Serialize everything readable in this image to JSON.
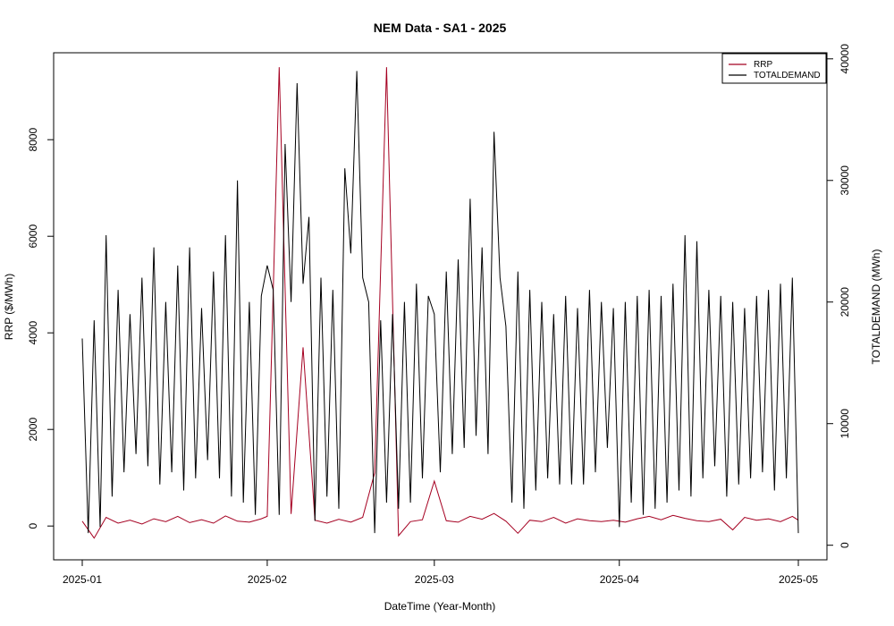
{
  "chart_data": {
    "type": "line",
    "title": "NEM Data - SA1 - 2025",
    "xlabel": "DateTime (Year-Month)",
    "ylabel_left": "RRP ($/MWh)",
    "ylabel_right": "TOTALDEMAND (MWh)",
    "x_tick_labels": [
      "2025-01",
      "2025-02",
      "2025-03",
      "2025-04",
      "2025-05"
    ],
    "x_range": [
      "2025-01-01",
      "2025-05-01"
    ],
    "ylim_left": [
      -700,
      9800
    ],
    "yticks_left": [
      0,
      2000,
      4000,
      6000,
      8000
    ],
    "ylim_right": [
      -1200,
      40500
    ],
    "yticks_right": [
      0,
      10000,
      20000,
      30000,
      40000
    ],
    "legend_position": "top-right",
    "grid": false,
    "series": [
      {
        "name": "RRP",
        "axis": "left",
        "color": "#a50021",
        "x": [
          "2025-01-01",
          "2025-01-03",
          "2025-01-05",
          "2025-01-07",
          "2025-01-09",
          "2025-01-11",
          "2025-01-13",
          "2025-01-15",
          "2025-01-17",
          "2025-01-19",
          "2025-01-21",
          "2025-01-23",
          "2025-01-25",
          "2025-01-27",
          "2025-01-29",
          "2025-01-31",
          "2025-02-01",
          "2025-02-03",
          "2025-02-05",
          "2025-02-07",
          "2025-02-09",
          "2025-02-11",
          "2025-02-13",
          "2025-02-15",
          "2025-02-17",
          "2025-02-19",
          "2025-02-21",
          "2025-02-23",
          "2025-02-25",
          "2025-02-27",
          "2025-03-01",
          "2025-03-03",
          "2025-03-05",
          "2025-03-07",
          "2025-03-09",
          "2025-03-11",
          "2025-03-13",
          "2025-03-15",
          "2025-03-17",
          "2025-03-19",
          "2025-03-21",
          "2025-03-23",
          "2025-03-25",
          "2025-03-27",
          "2025-03-29",
          "2025-03-31",
          "2025-04-02",
          "2025-04-04",
          "2025-04-06",
          "2025-04-08",
          "2025-04-10",
          "2025-04-12",
          "2025-04-14",
          "2025-04-16",
          "2025-04-18",
          "2025-04-20",
          "2025-04-22",
          "2025-04-24",
          "2025-04-26",
          "2025-04-28",
          "2025-04-30",
          "2025-05-01"
        ],
        "y": [
          100,
          -250,
          180,
          60,
          120,
          40,
          150,
          90,
          200,
          70,
          130,
          60,
          210,
          100,
          80,
          150,
          200,
          9500,
          250,
          3700,
          120,
          60,
          140,
          80,
          180,
          1100,
          9500,
          -200,
          90,
          130,
          930,
          110,
          80,
          200,
          140,
          260,
          100,
          -150,
          120,
          90,
          180,
          60,
          150,
          110,
          90,
          120,
          80,
          150,
          200,
          130,
          220,
          160,
          110,
          90,
          140,
          -80,
          180,
          120,
          150,
          90,
          200,
          120
        ]
      },
      {
        "name": "TOTALDEMAND",
        "axis": "right",
        "color": "#000000",
        "x": [
          "2025-01-01",
          "2025-01-02",
          "2025-01-03",
          "2025-01-04",
          "2025-01-05",
          "2025-01-06",
          "2025-01-07",
          "2025-01-08",
          "2025-01-09",
          "2025-01-10",
          "2025-01-11",
          "2025-01-12",
          "2025-01-13",
          "2025-01-14",
          "2025-01-15",
          "2025-01-16",
          "2025-01-17",
          "2025-01-18",
          "2025-01-19",
          "2025-01-20",
          "2025-01-21",
          "2025-01-22",
          "2025-01-23",
          "2025-01-24",
          "2025-01-25",
          "2025-01-26",
          "2025-01-27",
          "2025-01-28",
          "2025-01-29",
          "2025-01-30",
          "2025-01-31",
          "2025-02-01",
          "2025-02-02",
          "2025-02-03",
          "2025-02-04",
          "2025-02-05",
          "2025-02-06",
          "2025-02-07",
          "2025-02-08",
          "2025-02-09",
          "2025-02-10",
          "2025-02-11",
          "2025-02-12",
          "2025-02-13",
          "2025-02-14",
          "2025-02-15",
          "2025-02-16",
          "2025-02-17",
          "2025-02-18",
          "2025-02-19",
          "2025-02-20",
          "2025-02-21",
          "2025-02-22",
          "2025-02-23",
          "2025-02-24",
          "2025-02-25",
          "2025-02-26",
          "2025-02-27",
          "2025-02-28",
          "2025-03-01",
          "2025-03-02",
          "2025-03-03",
          "2025-03-04",
          "2025-03-05",
          "2025-03-06",
          "2025-03-07",
          "2025-03-08",
          "2025-03-09",
          "2025-03-10",
          "2025-03-11",
          "2025-03-12",
          "2025-03-13",
          "2025-03-14",
          "2025-03-15",
          "2025-03-16",
          "2025-03-17",
          "2025-03-18",
          "2025-03-19",
          "2025-03-20",
          "2025-03-21",
          "2025-03-22",
          "2025-03-23",
          "2025-03-24",
          "2025-03-25",
          "2025-03-26",
          "2025-03-27",
          "2025-03-28",
          "2025-03-29",
          "2025-03-30",
          "2025-03-31",
          "2025-04-01",
          "2025-04-02",
          "2025-04-03",
          "2025-04-04",
          "2025-04-05",
          "2025-04-06",
          "2025-04-07",
          "2025-04-08",
          "2025-04-09",
          "2025-04-10",
          "2025-04-11",
          "2025-04-12",
          "2025-04-13",
          "2025-04-14",
          "2025-04-15",
          "2025-04-16",
          "2025-04-17",
          "2025-04-18",
          "2025-04-19",
          "2025-04-20",
          "2025-04-21",
          "2025-04-22",
          "2025-04-23",
          "2025-04-24",
          "2025-04-25",
          "2025-04-26",
          "2025-04-27",
          "2025-04-28",
          "2025-04-29",
          "2025-04-30",
          "2025-05-01"
        ],
        "y": [
          17000,
          1000,
          18500,
          1500,
          25500,
          4000,
          21000,
          6000,
          19000,
          7500,
          22000,
          6500,
          24500,
          5000,
          20000,
          6000,
          23000,
          4500,
          24500,
          5500,
          19500,
          7000,
          22500,
          5500,
          25500,
          4000,
          30000,
          3500,
          20000,
          2500,
          20500,
          23000,
          21000,
          2500,
          33000,
          20000,
          38000,
          21500,
          27000,
          2000,
          22000,
          4000,
          21000,
          3000,
          31000,
          24000,
          39000,
          22000,
          20000,
          1000,
          18500,
          3500,
          19000,
          3000,
          20000,
          3500,
          21500,
          5500,
          20500,
          19000,
          6000,
          22500,
          7500,
          23500,
          8000,
          28500,
          9000,
          24500,
          7500,
          34000,
          22000,
          18000,
          3500,
          22500,
          3000,
          21000,
          4500,
          20000,
          5500,
          19000,
          5000,
          20500,
          5000,
          19500,
          5000,
          21000,
          6000,
          20000,
          8000,
          19500,
          1500,
          20000,
          3500,
          20500,
          2500,
          21000,
          3000,
          20500,
          3500,
          21500,
          4500,
          25500,
          4000,
          25000,
          5500,
          21000,
          6500,
          20500,
          4000,
          20000,
          5000,
          19500,
          5500,
          20500,
          6000,
          21000,
          4500,
          21500,
          5500,
          22000,
          1000
        ]
      }
    ]
  }
}
